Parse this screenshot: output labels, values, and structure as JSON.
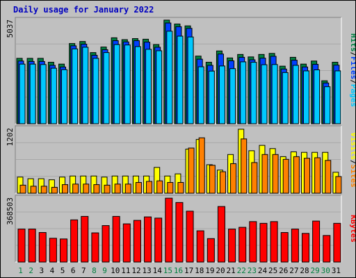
{
  "title": "Daily usage for January 2022",
  "colors": {
    "hits": "#008040",
    "files": "#0040ff",
    "pages": "#00c8ff",
    "visits": "#ffff00",
    "sites": "#ff8000",
    "kbytes": "#ff0000",
    "weekday_label": "#000000",
    "weekend_label": "#008040",
    "separator": "#000000"
  },
  "chart_data": [
    {
      "type": "bar",
      "axis_max_label": "5037",
      "ylim": [
        0,
        5037
      ],
      "x": [
        "1",
        "2",
        "3",
        "4",
        "5",
        "6",
        "7",
        "8",
        "9",
        "10",
        "11",
        "12",
        "13",
        "14",
        "15",
        "16",
        "17",
        "18",
        "19",
        "20",
        "21",
        "22",
        "23",
        "24",
        "25",
        "26",
        "27",
        "28",
        "29",
        "30",
        "31"
      ],
      "series": [
        {
          "name": "Hits",
          "values": [
            3180,
            3180,
            3180,
            2990,
            2900,
            3900,
            4000,
            3460,
            3730,
            4180,
            4090,
            4140,
            4110,
            3850,
            5040,
            4850,
            4760,
            3290,
            2990,
            3540,
            3200,
            3370,
            3250,
            3370,
            3420,
            2800,
            3230,
            2900,
            3050,
            2090,
            2990
          ]
        },
        {
          "name": "Files",
          "values": [
            3050,
            3030,
            3030,
            2840,
            2760,
            3790,
            3870,
            3330,
            3600,
            4040,
            3980,
            4040,
            3970,
            3720,
            4900,
            4720,
            4640,
            3140,
            2840,
            3390,
            3060,
            3230,
            3110,
            3190,
            3280,
            2660,
            3090,
            2760,
            2890,
            1980,
            2850
          ]
        },
        {
          "name": "Pages",
          "values": [
            2900,
            2900,
            2880,
            2700,
            2630,
            3640,
            3720,
            3180,
            3460,
            3850,
            3830,
            3750,
            3620,
            3550,
            4500,
            4260,
            4220,
            2770,
            2560,
            2810,
            2680,
            3010,
            2990,
            2870,
            2880,
            2490,
            2840,
            2570,
            2620,
            1800,
            2570
          ]
        }
      ]
    },
    {
      "type": "bar",
      "axis_max_label": "1202",
      "ylim": [
        0,
        1202
      ],
      "x": [
        "1",
        "2",
        "3",
        "4",
        "5",
        "6",
        "7",
        "8",
        "9",
        "10",
        "11",
        "12",
        "13",
        "14",
        "15",
        "16",
        "17",
        "18",
        "19",
        "20",
        "21",
        "22",
        "23",
        "24",
        "25",
        "26",
        "27",
        "28",
        "29",
        "30",
        "31"
      ],
      "series": [
        {
          "name": "Visits",
          "values": [
            300,
            270,
            270,
            250,
            300,
            320,
            320,
            320,
            300,
            320,
            320,
            320,
            320,
            480,
            320,
            360,
            820,
            1000,
            530,
            430,
            720,
            1190,
            790,
            890,
            830,
            680,
            770,
            760,
            760,
            760,
            390
          ]
        },
        {
          "name": "Sites",
          "values": [
            150,
            130,
            130,
            110,
            160,
            170,
            170,
            160,
            150,
            170,
            170,
            200,
            220,
            230,
            200,
            200,
            840,
            1030,
            520,
            400,
            550,
            1010,
            570,
            720,
            720,
            630,
            680,
            650,
            660,
            610,
            310
          ]
        }
      ]
    },
    {
      "type": "bar",
      "axis_max_label": "368503",
      "ylim": [
        0,
        368503
      ],
      "x": [
        "1",
        "2",
        "3",
        "4",
        "5",
        "6",
        "7",
        "8",
        "9",
        "10",
        "11",
        "12",
        "13",
        "14",
        "15",
        "16",
        "17",
        "18",
        "19",
        "20",
        "21",
        "22",
        "23",
        "24",
        "25",
        "26",
        "27",
        "28",
        "29",
        "30",
        "31"
      ],
      "series": [
        {
          "name": "KBytes",
          "values": [
            190000,
            190000,
            170000,
            137000,
            133000,
            243000,
            263000,
            168000,
            210000,
            263000,
            220000,
            240000,
            260000,
            253000,
            368000,
            343000,
            293000,
            180000,
            135000,
            320000,
            190000,
            200000,
            233000,
            223000,
            233000,
            170000,
            190000,
            165000,
            236000,
            153000,
            223000
          ]
        }
      ]
    }
  ],
  "weekend_days": [
    "1",
    "2",
    "8",
    "9",
    "15",
    "16",
    "22",
    "23",
    "29",
    "30"
  ],
  "side_labels": {
    "top": [
      {
        "text": "Hits",
        "color_key": "hits"
      },
      {
        "text": "/",
        "color_key": "separator"
      },
      {
        "text": "Files",
        "color_key": "files"
      },
      {
        "text": "/",
        "color_key": "separator"
      },
      {
        "text": "Pages",
        "color_key": "pages"
      }
    ],
    "middle": [
      {
        "text": "Visits",
        "color_key": "visits"
      },
      {
        "text": "/",
        "color_key": "separator"
      },
      {
        "text": "Sites",
        "color_key": "sites"
      }
    ],
    "bottom": [
      {
        "text": "KBytes",
        "color_key": "kbytes"
      }
    ]
  }
}
